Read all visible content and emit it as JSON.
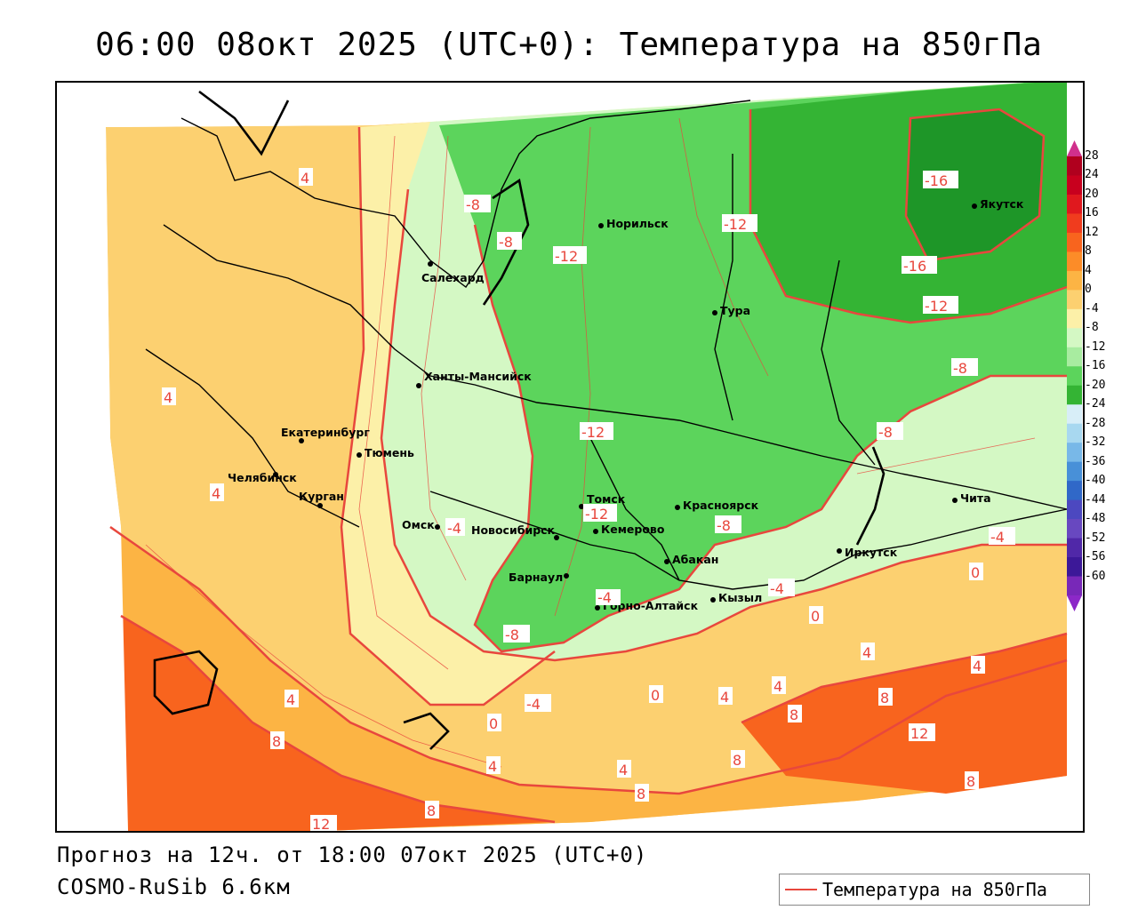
{
  "header": {
    "title": "06:00 08окт 2025 (UTC+0): Температура на 850гПа"
  },
  "footer": {
    "forecast": "Прогноз на 12ч. от 18:00 07окт 2025 (UTC+0)",
    "model": "COSMO-RuSib 6.6км"
  },
  "legend": {
    "label": "Температура на 850гПа",
    "line_color": "#e8473d"
  },
  "colorbar": {
    "labels": [
      "28",
      "24",
      "20",
      "16",
      "12",
      "8",
      "4",
      "0",
      "-4",
      "-8",
      "-12",
      "-16",
      "-20",
      "-24",
      "-28",
      "-32",
      "-36",
      "-40",
      "-44",
      "-48",
      "-52",
      "-56",
      "-60"
    ],
    "colors": [
      "#b0001e",
      "#c8001e",
      "#e0181e",
      "#f03c1e",
      "#f8641e",
      "#fc8c28",
      "#fcb444",
      "#fcd070",
      "#fcf0a8",
      "#d4f8c4",
      "#a8eca0",
      "#5cd45c",
      "#34b434",
      "#d8eef8",
      "#a8d8f0",
      "#78b8e8",
      "#4890d8",
      "#3068c8",
      "#4c48c0",
      "#6848c0",
      "#5028a8",
      "#3c1898",
      "#7828b8"
    ],
    "top_arrow_color": "#d0308c",
    "bottom_arrow_color": "#8c28c8"
  },
  "cities": [
    {
      "name": "Норильск"
    },
    {
      "name": "Салехард"
    },
    {
      "name": "Тура"
    },
    {
      "name": "Якутск"
    },
    {
      "name": "Ханты-Мансийск"
    },
    {
      "name": "Екатеринбург"
    },
    {
      "name": "Тюмень"
    },
    {
      "name": "Челябинск"
    },
    {
      "name": "Курган"
    },
    {
      "name": "Омск"
    },
    {
      "name": "Новосибирск"
    },
    {
      "name": "Томск"
    },
    {
      "name": "Кемерово"
    },
    {
      "name": "Красноярск"
    },
    {
      "name": "Абакан"
    },
    {
      "name": "Барнаул"
    },
    {
      "name": "Горно-Алтайск"
    },
    {
      "name": "Кызыл"
    },
    {
      "name": "Иркутск"
    },
    {
      "name": "Чита"
    }
  ],
  "isotherm_labels": [
    "-16",
    "-16",
    "-12",
    "-12",
    "-12",
    "-12",
    "-12",
    "-8",
    "-8",
    "-8",
    "-8",
    "-8",
    "-8",
    "-4",
    "-4",
    "-4",
    "-4",
    "-4",
    "0",
    "0",
    "0",
    "0",
    "4",
    "4",
    "4",
    "4",
    "4",
    "4",
    "4",
    "4",
    "4",
    "4",
    "8",
    "8",
    "8",
    "8",
    "8",
    "8",
    "8",
    "12",
    "12"
  ]
}
